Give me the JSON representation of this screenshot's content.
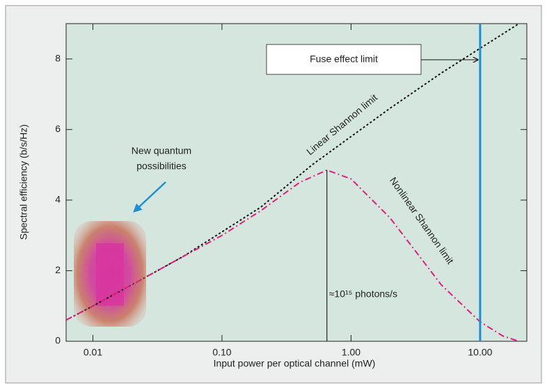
{
  "chart_data": {
    "type": "line",
    "xlabel": "Input power per optical channel (mW)",
    "ylabel": "Spectral efficiency (b/s/Hz)",
    "xscale": "log",
    "xlim": [
      0.0062,
      23
    ],
    "ylim": [
      0,
      9
    ],
    "xticks": [
      0.01,
      {
        "value": 0.1,
        "label": "0.10"
      },
      {
        "value": 1,
        "label": "1.00"
      },
      {
        "value": 10,
        "label": "10.00"
      }
    ],
    "yticks": [
      0,
      2,
      4,
      6,
      8
    ],
    "series": [
      {
        "name": "Linear Shannon limit",
        "color": "#111111",
        "dash": "3,3",
        "x": [
          0.0062,
          0.01,
          0.02,
          0.05,
          0.1,
          0.2,
          0.5,
          1,
          2,
          5,
          10,
          20
        ],
        "values": [
          0.6,
          1.0,
          1.6,
          2.4,
          3.1,
          3.8,
          5.0,
          5.8,
          6.6,
          7.6,
          8.3,
          9.0
        ]
      },
      {
        "name": "Nonlinear Shannon limit",
        "color": "#e0207a",
        "dash": "9,4,2,4",
        "x": [
          0.0062,
          0.01,
          0.02,
          0.05,
          0.1,
          0.2,
          0.4,
          0.65,
          1,
          2,
          5,
          10,
          15,
          20
        ],
        "values": [
          0.6,
          1.0,
          1.6,
          2.4,
          3.0,
          3.7,
          4.5,
          4.85,
          4.6,
          3.5,
          1.6,
          0.55,
          0.15,
          0
        ]
      }
    ],
    "fuse_limit": {
      "x": 10,
      "label": "Fuse effect limit",
      "color": "#1a8fd2"
    },
    "annotations": {
      "quantum": [
        "New quantum",
        "possibilities"
      ],
      "photons": "≈10¹⁵ photons/s"
    }
  }
}
